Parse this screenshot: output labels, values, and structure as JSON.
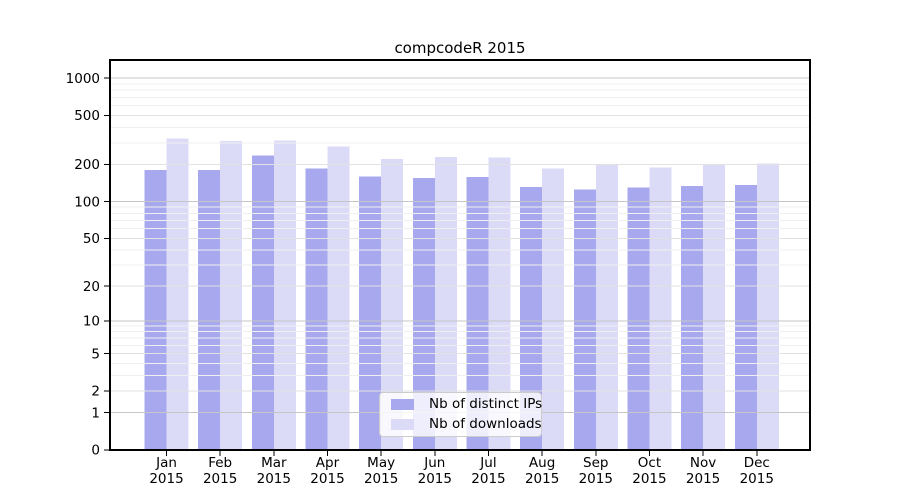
{
  "legend": {
    "items": [
      {
        "label": "Nb of distinct IPs",
        "color": "#a8a8ee"
      },
      {
        "label": "Nb of downloads",
        "color": "#dbdbf8"
      }
    ]
  },
  "chart_data": {
    "type": "bar",
    "title": "compcodeR 2015",
    "categories": [
      "Jan",
      "Feb",
      "Mar",
      "Apr",
      "May",
      "Jun",
      "Jul",
      "Aug",
      "Sep",
      "Oct",
      "Nov",
      "Dec"
    ],
    "category_year": "2015",
    "series": [
      {
        "name": "Nb of distinct IPs",
        "color": "#a8a8ee",
        "values": [
          180,
          180,
          236,
          186,
          160,
          156,
          158,
          132,
          125,
          130,
          134,
          137
        ]
      },
      {
        "name": "Nb of downloads",
        "color": "#dbdbf8",
        "values": [
          325,
          310,
          312,
          280,
          221,
          231,
          227,
          186,
          199,
          190,
          200,
          203
        ]
      }
    ],
    "xlabel": "",
    "ylabel": "",
    "y_axis": {
      "scale": "log1p",
      "ylim": [
        0,
        1400
      ],
      "ticks": [
        0,
        1,
        2,
        5,
        10,
        20,
        50,
        100,
        200,
        500,
        1000
      ],
      "minor_gridlines": [
        3,
        4,
        6,
        7,
        8,
        9,
        30,
        40,
        60,
        70,
        80,
        90,
        300,
        400,
        600,
        700,
        800,
        900
      ]
    },
    "grid": true,
    "grid_above_bars": true,
    "legend_position": "lower center",
    "colors": {
      "major_gridline": "#c6c6c6",
      "labeled_gridline": "#e2e2e2",
      "minor_gridline": "#efefef",
      "axis_border": "#000000",
      "tick_label": "#000000"
    }
  }
}
